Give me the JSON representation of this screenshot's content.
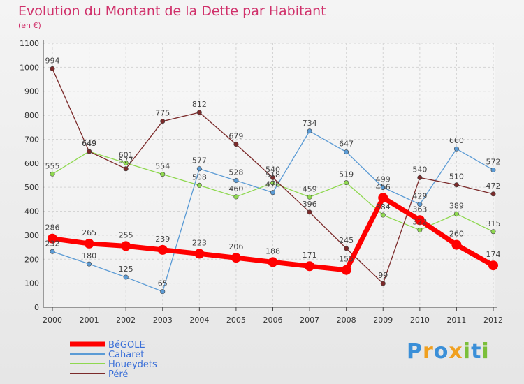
{
  "header": {
    "title": "Evolution du Montant de la Dette par Habitant",
    "unit": "(en €)"
  },
  "brand": {
    "text": "Proxiti",
    "letters": [
      {
        "ch": "P",
        "color": "#3a8fd8"
      },
      {
        "ch": "r",
        "color": "#f0a020"
      },
      {
        "ch": "o",
        "color": "#3a8fd8"
      },
      {
        "ch": "x",
        "color": "#f0a020"
      },
      {
        "ch": "i",
        "color": "#7bbf3a"
      },
      {
        "ch": "t",
        "color": "#3a8fd8"
      },
      {
        "ch": "i",
        "color": "#7bbf3a"
      }
    ]
  },
  "chart_data": {
    "type": "line",
    "title": "Evolution du Montant de la Dette par Habitant",
    "ylabel": "(en €)",
    "xlabel": "",
    "x": [
      2000,
      2001,
      2002,
      2003,
      2004,
      2005,
      2006,
      2007,
      2008,
      2009,
      2010,
      2011,
      2012
    ],
    "y_ticks": [
      0,
      100,
      200,
      300,
      400,
      500,
      600,
      700,
      800,
      900,
      1000,
      1100
    ],
    "ylim": [
      0,
      1100
    ],
    "grid": true,
    "legend_position": "bottom-left",
    "series": [
      {
        "name": "BéGOLE",
        "color": "#ff0000",
        "width": 7,
        "marker_radius": 7,
        "values": [
          286,
          265,
          255,
          239,
          223,
          206,
          188,
          171,
          155,
          456,
          363,
          260,
          174
        ]
      },
      {
        "name": "Caharet",
        "color": "#5b9bd5",
        "width": 1.3,
        "marker_radius": 3.2,
        "values": [
          232,
          180,
          125,
          65,
          577,
          528,
          478,
          734,
          647,
          499,
          429,
          660,
          572
        ]
      },
      {
        "name": "Houeydets",
        "color": "#8fd850",
        "width": 1.3,
        "marker_radius": 3.2,
        "values": [
          555,
          649,
          601,
          554,
          508,
          460,
          518,
          459,
          519,
          384,
          322,
          389,
          315
        ]
      },
      {
        "name": "Péré",
        "color": "#7b2a2a",
        "width": 1.3,
        "marker_radius": 3.2,
        "values": [
          994,
          649,
          577,
          775,
          812,
          679,
          540,
          396,
          245,
          99,
          540,
          510,
          472
        ]
      }
    ]
  }
}
